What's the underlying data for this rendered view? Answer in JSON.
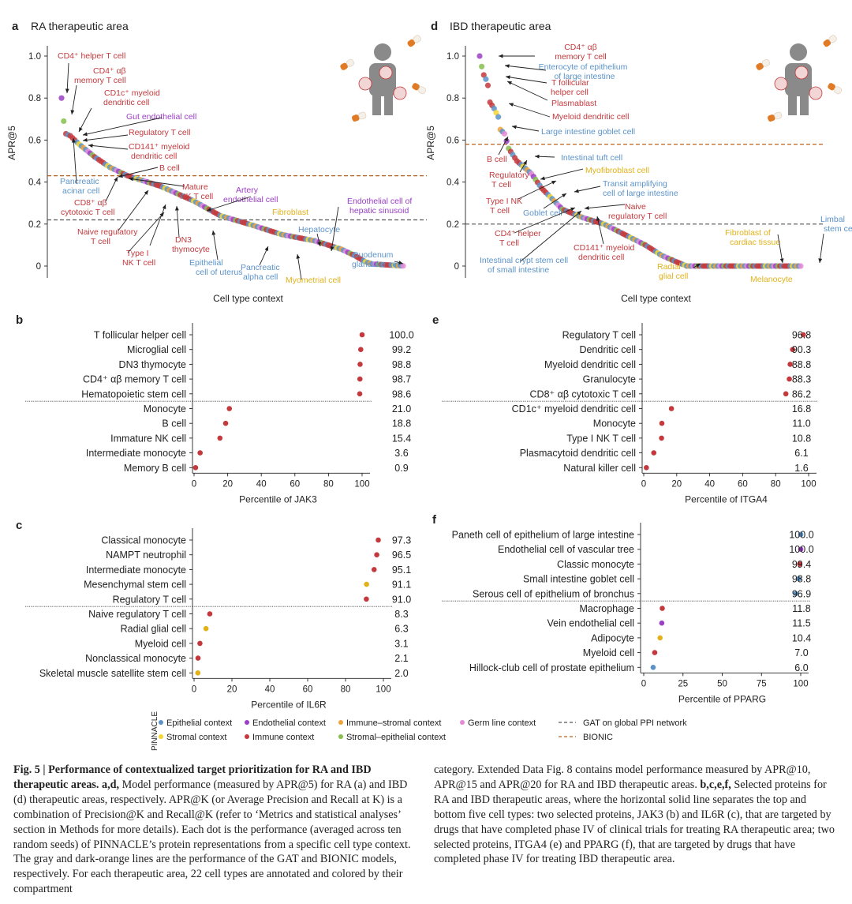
{
  "panels": {
    "a": {
      "letter": "a",
      "title": "RA therapeutic area",
      "ylabel": "APR@5",
      "xlabel": "Cell type context",
      "yticks": [
        "1.0",
        "0.8",
        "0.6",
        "0.4",
        "0.2",
        "0"
      ],
      "labels": [
        {
          "t": "CD4⁺ helper T cell",
          "c": "immune"
        },
        {
          "t": "CD4⁺ αβ",
          "c": "immune"
        },
        {
          "t": "memory T cell",
          "c": "immune"
        },
        {
          "t": "CD1c⁺ myeloid",
          "c": "immune"
        },
        {
          "t": "dendritic cell",
          "c": "immune"
        },
        {
          "t": "Gut endothelial cell",
          "c": "endothelial"
        },
        {
          "t": "Regulatory T cell",
          "c": "immune"
        },
        {
          "t": "CD141⁺ myeloid",
          "c": "immune"
        },
        {
          "t": "dendritic cell",
          "c": "immune"
        },
        {
          "t": "B cell",
          "c": "immune"
        },
        {
          "t": "Pancreatic",
          "c": "epithelial"
        },
        {
          "t": "acinar cell",
          "c": "epithelial"
        },
        {
          "t": "CD8⁺ αβ",
          "c": "immune"
        },
        {
          "t": "cytotoxic T cell",
          "c": "immune"
        },
        {
          "t": "Mature",
          "c": "immune"
        },
        {
          "t": "NK T cell",
          "c": "immune"
        },
        {
          "t": "Artery",
          "c": "endothelial"
        },
        {
          "t": "endothelial cell",
          "c": "endothelial"
        },
        {
          "t": "Naive regulatory",
          "c": "immune"
        },
        {
          "t": "T cell",
          "c": "immune"
        },
        {
          "t": "Fibroblast",
          "c": "stromal"
        },
        {
          "t": "Endothelial cell of",
          "c": "endothelial"
        },
        {
          "t": "hepatic sinusoid",
          "c": "endothelial"
        },
        {
          "t": "DN3",
          "c": "immune"
        },
        {
          "t": "thymocyte",
          "c": "immune"
        },
        {
          "t": "Type I",
          "c": "immune"
        },
        {
          "t": "NK T cell",
          "c": "immune"
        },
        {
          "t": "Hepatocyte",
          "c": "epithelial"
        },
        {
          "t": "Duodenum",
          "c": "epithelial"
        },
        {
          "t": "glandular cell",
          "c": "epithelial"
        },
        {
          "t": "Epithelial",
          "c": "epithelial"
        },
        {
          "t": "cell of uterus",
          "c": "epithelial"
        },
        {
          "t": "Pancreatic",
          "c": "epithelial"
        },
        {
          "t": "alpha cell",
          "c": "epithelial"
        },
        {
          "t": "Myometrial cell",
          "c": "stromal"
        }
      ]
    },
    "d": {
      "letter": "d",
      "title": "IBD therapeutic area",
      "ylabel": "APR@5",
      "xlabel": "Cell type context",
      "yticks": [
        "1.0",
        "0.8",
        "0.6",
        "0.4",
        "0.2",
        "0"
      ],
      "labels": [
        {
          "t": "CD4⁺ αβ",
          "c": "immune"
        },
        {
          "t": "memory T cell",
          "c": "immune"
        },
        {
          "t": "Enterocyte of epithelium",
          "c": "epithelial"
        },
        {
          "t": "of large intestine",
          "c": "epithelial"
        },
        {
          "t": "T follicular",
          "c": "immune"
        },
        {
          "t": "helper cell",
          "c": "immune"
        },
        {
          "t": "Plasmablast",
          "c": "immune"
        },
        {
          "t": "Myeloid dendritic cell",
          "c": "immune"
        },
        {
          "t": "Large intestine goblet cell",
          "c": "epithelial"
        },
        {
          "t": "B cell",
          "c": "immune"
        },
        {
          "t": "Intestinal tuft cell",
          "c": "epithelial"
        },
        {
          "t": "Regulatory",
          "c": "immune"
        },
        {
          "t": "T cell",
          "c": "immune"
        },
        {
          "t": "Myofibroblast cell",
          "c": "stromal"
        },
        {
          "t": "Type I NK",
          "c": "immune"
        },
        {
          "t": "T cell",
          "c": "immune"
        },
        {
          "t": "Transit amplifying",
          "c": "epithelial"
        },
        {
          "t": "cell of large intestine",
          "c": "epithelial"
        },
        {
          "t": "Goblet cell",
          "c": "epithelial"
        },
        {
          "t": "Naive",
          "c": "immune"
        },
        {
          "t": "regulatory T cell",
          "c": "immune"
        },
        {
          "t": "CD4⁺ helper",
          "c": "immune"
        },
        {
          "t": "T cell",
          "c": "immune"
        },
        {
          "t": "CD141⁺ myeloid",
          "c": "immune"
        },
        {
          "t": "dendritic cell",
          "c": "immune"
        },
        {
          "t": "Intestinal crypt stem cell",
          "c": "epithelial"
        },
        {
          "t": "of small intestine",
          "c": "epithelial"
        },
        {
          "t": "Fibroblast of",
          "c": "stromal"
        },
        {
          "t": "cardiac tissue",
          "c": "stromal"
        },
        {
          "t": "Radial",
          "c": "stromal"
        },
        {
          "t": "glial cell",
          "c": "stromal"
        },
        {
          "t": "Melanocyte",
          "c": "stromal"
        },
        {
          "t": "Limbal",
          "c": "epithelial"
        },
        {
          "t": "stem cell",
          "c": "epithelial"
        }
      ]
    },
    "b": {
      "letter": "b",
      "xlabel": "Percentile of JAK3",
      "xticks": [
        "0",
        "20",
        "40",
        "60",
        "80",
        "100"
      ]
    },
    "e": {
      "letter": "e",
      "xlabel": "Percentile of ITGA4",
      "xticks": [
        "0",
        "20",
        "40",
        "60",
        "80",
        "100"
      ]
    },
    "c": {
      "letter": "c",
      "xlabel": "Percentile of IL6R",
      "xticks": [
        "0",
        "20",
        "40",
        "60",
        "80",
        "100"
      ]
    },
    "f": {
      "letter": "f",
      "xlabel": "Percentile of PPARG",
      "xticks": [
        "0",
        "25",
        "50",
        "75",
        "100"
      ]
    }
  },
  "legend": {
    "title": "PINNACLE",
    "items": [
      {
        "label": "Epithelial context",
        "color": "#5b93c9"
      },
      {
        "label": "Endothelial context",
        "color": "#9b3fc5"
      },
      {
        "label": "Immune–stromal context",
        "color": "#f2a33a"
      },
      {
        "label": "Germ line context",
        "color": "#e58bd6"
      },
      {
        "label": "Stromal context",
        "color": "#f6d632"
      },
      {
        "label": "Immune context",
        "color": "#c3393d"
      },
      {
        "label": "Stromal–epithelial context",
        "color": "#86c04f"
      }
    ],
    "lines": [
      {
        "label": "GAT on global PPI network",
        "color": "#555555"
      },
      {
        "label": "BIONIC",
        "color": "#b8601e"
      }
    ]
  },
  "colors": {
    "epithelial": "#5b93c9",
    "endothelial": "#9b3fc5",
    "immune": "#c3393d",
    "stromal": "#e2b21c",
    "immune_stromal": "#f2a33a",
    "germ": "#e58bd6",
    "stromal_epithelial": "#86c04f",
    "gat": "#555555",
    "bionic": "#b8601e"
  },
  "caption": {
    "left_bold": "Fig. 5 | Performance of contextualized target prioritization for RA and IBD therapeutic areas. a,d,",
    "left": "Model performance (measured by APR@5) for RA (a) and IBD (d) therapeutic areas, respectively. APR@K (or Average Precision and Recall at K) is a combination of Precision@K and Recall@K (refer to ‘Metrics and statistical analyses’ section in Methods for more details). Each dot is the performance (averaged across ten random seeds) of PINNACLE’s protein representations from a specific cell type context. The gray and dark-orange lines are the performance of the GAT and BIONIC models, respectively. For each therapeutic area, 22 cell types are annotated and colored by their compartment",
    "right_1": "category. Extended Data Fig. 8 contains model performance measured by APR@10, APR@15 and APR@20 for RA and IBD therapeutic areas.",
    "right_bold": "b,c,e,f,",
    "right_2": "Selected proteins for RA and IBD therapeutic areas, where the horizontal solid line separates the top and bottom five cell types: two selected proteins, JAK3 (b) and IL6R (c), that are targeted by drugs that have completed phase IV of clinical trials for treating RA therapeutic area; two selected proteins, ITGA4 (e) and PPARG (f), that are targeted by drugs that have completed phase IV for treating IBD therapeutic area."
  },
  "chart_data": [
    {
      "type": "scatter",
      "panel": "a",
      "title": "RA therapeutic area",
      "xlabel": "Cell type context",
      "ylabel": "APR@5",
      "ylim": [
        0,
        1.0
      ],
      "reference_lines": [
        {
          "name": "BIONIC",
          "y": 0.43
        },
        {
          "name": "GAT on global PPI network",
          "y": 0.22
        }
      ],
      "n_points": 156,
      "curve_anchors": [
        [
          0,
          0.8
        ],
        [
          1,
          0.69
        ],
        [
          2,
          0.63
        ],
        [
          4,
          0.62
        ],
        [
          8,
          0.58
        ],
        [
          15,
          0.52
        ],
        [
          22,
          0.47
        ],
        [
          30,
          0.43
        ],
        [
          45,
          0.38
        ],
        [
          60,
          0.31
        ],
        [
          72,
          0.24
        ],
        [
          85,
          0.2
        ],
        [
          100,
          0.15
        ],
        [
          115,
          0.12
        ],
        [
          127,
          0.08
        ],
        [
          133,
          0.05
        ],
        [
          138,
          0.02
        ],
        [
          141,
          0.01
        ],
        [
          156,
          0.0
        ]
      ]
    },
    {
      "type": "scatter",
      "panel": "d",
      "title": "IBD therapeutic area",
      "xlabel": "Cell type context",
      "ylabel": "APR@5",
      "ylim": [
        0,
        1.0
      ],
      "reference_lines": [
        {
          "name": "BIONIC",
          "y": 0.58
        },
        {
          "name": "GAT on global PPI network",
          "y": 0.2
        }
      ],
      "n_points": 156,
      "curve_anchors": [
        [
          0,
          1.0
        ],
        [
          1,
          0.95
        ],
        [
          2,
          0.91
        ],
        [
          3,
          0.89
        ],
        [
          4,
          0.86
        ],
        [
          5,
          0.78
        ],
        [
          7,
          0.75
        ],
        [
          9,
          0.71
        ],
        [
          10,
          0.65
        ],
        [
          12,
          0.63
        ],
        [
          14,
          0.56
        ],
        [
          18,
          0.5
        ],
        [
          25,
          0.44
        ],
        [
          30,
          0.37
        ],
        [
          35,
          0.32
        ],
        [
          40,
          0.27
        ],
        [
          50,
          0.23
        ],
        [
          60,
          0.2
        ],
        [
          70,
          0.15
        ],
        [
          80,
          0.1
        ],
        [
          88,
          0.05
        ],
        [
          95,
          0.02
        ],
        [
          100,
          0.0
        ],
        [
          156,
          0.0
        ]
      ]
    },
    {
      "type": "dot",
      "panel": "b",
      "xlabel": "Percentile of JAK3",
      "xlim": [
        0,
        100
      ],
      "rows": [
        {
          "label": "T follicular helper cell",
          "value": 100.0,
          "c": "immune"
        },
        {
          "label": "Microglial cell",
          "value": 99.2,
          "c": "immune"
        },
        {
          "label": "DN3 thymocyte",
          "value": 98.8,
          "c": "immune"
        },
        {
          "label": "CD4⁺ αβ memory T cell",
          "value": 98.7,
          "c": "immune"
        },
        {
          "label": "Hematopoietic stem cell",
          "value": 98.6,
          "c": "immune"
        },
        {
          "label": "Monocyte",
          "value": 21.0,
          "c": "immune"
        },
        {
          "label": "B cell",
          "value": 18.8,
          "c": "immune"
        },
        {
          "label": "Immature NK cell",
          "value": 15.4,
          "c": "immune"
        },
        {
          "label": "Intermediate monocyte",
          "value": 3.6,
          "c": "immune"
        },
        {
          "label": "Memory B cell",
          "value": 0.9,
          "c": "immune"
        }
      ]
    },
    {
      "type": "dot",
      "panel": "e",
      "xlabel": "Percentile of ITGA4",
      "xlim": [
        0,
        100
      ],
      "rows": [
        {
          "label": "Regulatory T cell",
          "value": 96.8,
          "c": "immune"
        },
        {
          "label": "Dendritic cell",
          "value": 90.3,
          "c": "immune"
        },
        {
          "label": "Myeloid dendritic cell",
          "value": 88.8,
          "c": "immune"
        },
        {
          "label": "Granulocyte",
          "value": 88.3,
          "c": "immune"
        },
        {
          "label": "CD8⁺ αβ cytotoxic T cell",
          "value": 86.2,
          "c": "immune"
        },
        {
          "label": "CD1c⁺ myeloid dendritic cell",
          "value": 16.8,
          "c": "immune"
        },
        {
          "label": "Monocyte",
          "value": 11.0,
          "c": "immune"
        },
        {
          "label": "Type I NK T cell",
          "value": 10.8,
          "c": "immune"
        },
        {
          "label": "Plasmacytoid dendritic cell",
          "value": 6.1,
          "c": "immune"
        },
        {
          "label": "Natural killer cell",
          "value": 1.6,
          "c": "immune"
        }
      ]
    },
    {
      "type": "dot",
      "panel": "c",
      "xlabel": "Percentile of IL6R",
      "xlim": [
        0,
        100
      ],
      "rows": [
        {
          "label": "Classical monocyte",
          "value": 97.3,
          "c": "immune"
        },
        {
          "label": "NAMPT neutrophil",
          "value": 96.5,
          "c": "immune"
        },
        {
          "label": "Intermediate monocyte",
          "value": 95.1,
          "c": "immune"
        },
        {
          "label": "Mesenchymal stem cell",
          "value": 91.1,
          "c": "stromal"
        },
        {
          "label": "Regulatory T cell",
          "value": 91.0,
          "c": "immune"
        },
        {
          "label": "Naive regulatory T cell",
          "value": 8.3,
          "c": "immune"
        },
        {
          "label": "Radial glial cell",
          "value": 6.3,
          "c": "stromal"
        },
        {
          "label": "Myeloid cell",
          "value": 3.1,
          "c": "immune"
        },
        {
          "label": "Nonclassical monocyte",
          "value": 2.1,
          "c": "immune"
        },
        {
          "label": "Skeletal muscle satellite stem cell",
          "value": 2.0,
          "c": "stromal"
        }
      ]
    },
    {
      "type": "dot",
      "panel": "f",
      "xlabel": "Percentile of PPARG",
      "xlim": [
        0,
        100
      ],
      "rows": [
        {
          "label": "Paneth cell of epithelium of large intestine",
          "value": 100.0,
          "c": "epithelial"
        },
        {
          "label": "Endothelial cell of vascular tree",
          "value": 100.0,
          "c": "endothelial"
        },
        {
          "label": "Classic monocyte",
          "value": 99.4,
          "c": "immune"
        },
        {
          "label": "Small intestine goblet cell",
          "value": 98.8,
          "c": "epithelial"
        },
        {
          "label": "Serous cell of epithelium of bronchus",
          "value": 96.9,
          "c": "epithelial"
        },
        {
          "label": "Macrophage",
          "value": 11.8,
          "c": "immune"
        },
        {
          "label": "Vein endothelial cell",
          "value": 11.5,
          "c": "endothelial"
        },
        {
          "label": "Adipocyte",
          "value": 10.4,
          "c": "stromal"
        },
        {
          "label": "Myeloid cell",
          "value": 7.0,
          "c": "immune"
        },
        {
          "label": "Hillock-club cell of prostate epithelium",
          "value": 6.0,
          "c": "epithelial"
        }
      ]
    }
  ]
}
